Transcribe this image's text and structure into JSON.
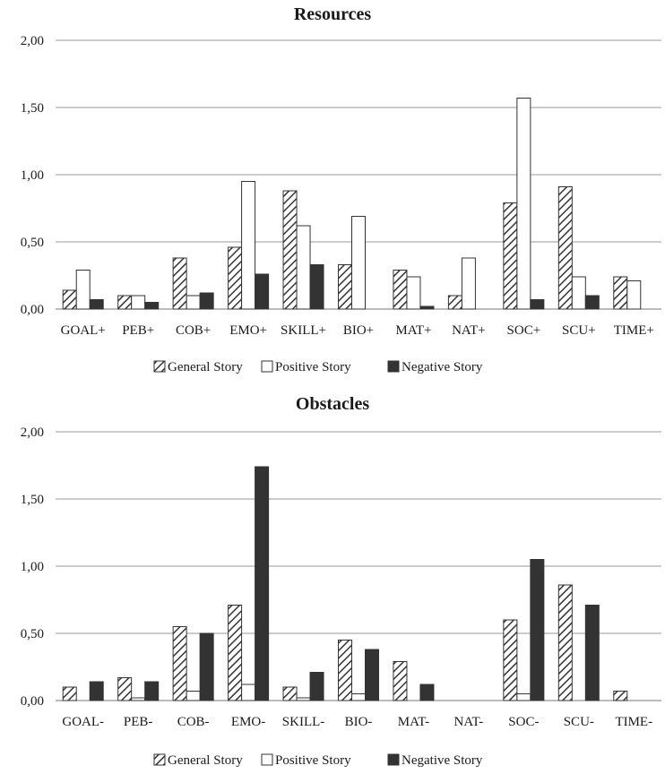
{
  "chart_data": [
    {
      "type": "bar",
      "title": "Resources",
      "categories": [
        "GOAL+",
        "PEB+",
        "COB+",
        "EMO+",
        "SKILL+",
        "BIO+",
        "MAT+",
        "NAT+",
        "SOC+",
        "SCU+",
        "TIME+"
      ],
      "yticks": [
        "0,00",
        "0,50",
        "1,00",
        "1,50",
        "2,00"
      ],
      "ylim": [
        0,
        2
      ],
      "grid": true,
      "legend_position": "bottom",
      "series": [
        {
          "name": "General Story",
          "pattern": "hatched",
          "values": [
            0.14,
            0.1,
            0.38,
            0.46,
            0.88,
            0.33,
            0.29,
            0.1,
            0.79,
            0.91,
            0.24
          ]
        },
        {
          "name": "Positive Story",
          "pattern": "white",
          "values": [
            0.29,
            0.1,
            0.1,
            0.95,
            0.62,
            0.69,
            0.24,
            0.38,
            1.57,
            0.24,
            0.21
          ]
        },
        {
          "name": "Negative Story",
          "pattern": "dark",
          "values": [
            0.07,
            0.05,
            0.12,
            0.26,
            0.33,
            0.0,
            0.02,
            0.0,
            0.07,
            0.1,
            0.0
          ]
        }
      ]
    },
    {
      "type": "bar",
      "title": "Obstacles",
      "categories": [
        "GOAL-",
        "PEB-",
        "COB-",
        "EMO-",
        "SKILL-",
        "BIO-",
        "MAT-",
        "NAT-",
        "SOC-",
        "SCU-",
        "TIME-"
      ],
      "yticks": [
        "0,00",
        "0,50",
        "1,00",
        "1,50",
        "2,00"
      ],
      "ylim": [
        0,
        2
      ],
      "grid": true,
      "legend_position": "bottom",
      "series": [
        {
          "name": "General Story",
          "pattern": "hatched",
          "values": [
            0.1,
            0.17,
            0.55,
            0.71,
            0.1,
            0.45,
            0.29,
            0.0,
            0.6,
            0.86,
            0.07
          ]
        },
        {
          "name": "Positive Story",
          "pattern": "white",
          "values": [
            0.0,
            0.02,
            0.07,
            0.12,
            0.02,
            0.05,
            0.0,
            0.0,
            0.05,
            0.0,
            0.0
          ]
        },
        {
          "name": "Negative Story",
          "pattern": "dark",
          "values": [
            0.14,
            0.14,
            0.5,
            1.74,
            0.21,
            0.38,
            0.12,
            0.0,
            1.05,
            0.71,
            0.0
          ]
        }
      ]
    }
  ],
  "colors": {
    "hatch": "#333333",
    "white_fill": "#ffffff",
    "dark_fill": "#333333",
    "grid": "#9a9a9a",
    "text": "#1a1a1a"
  }
}
